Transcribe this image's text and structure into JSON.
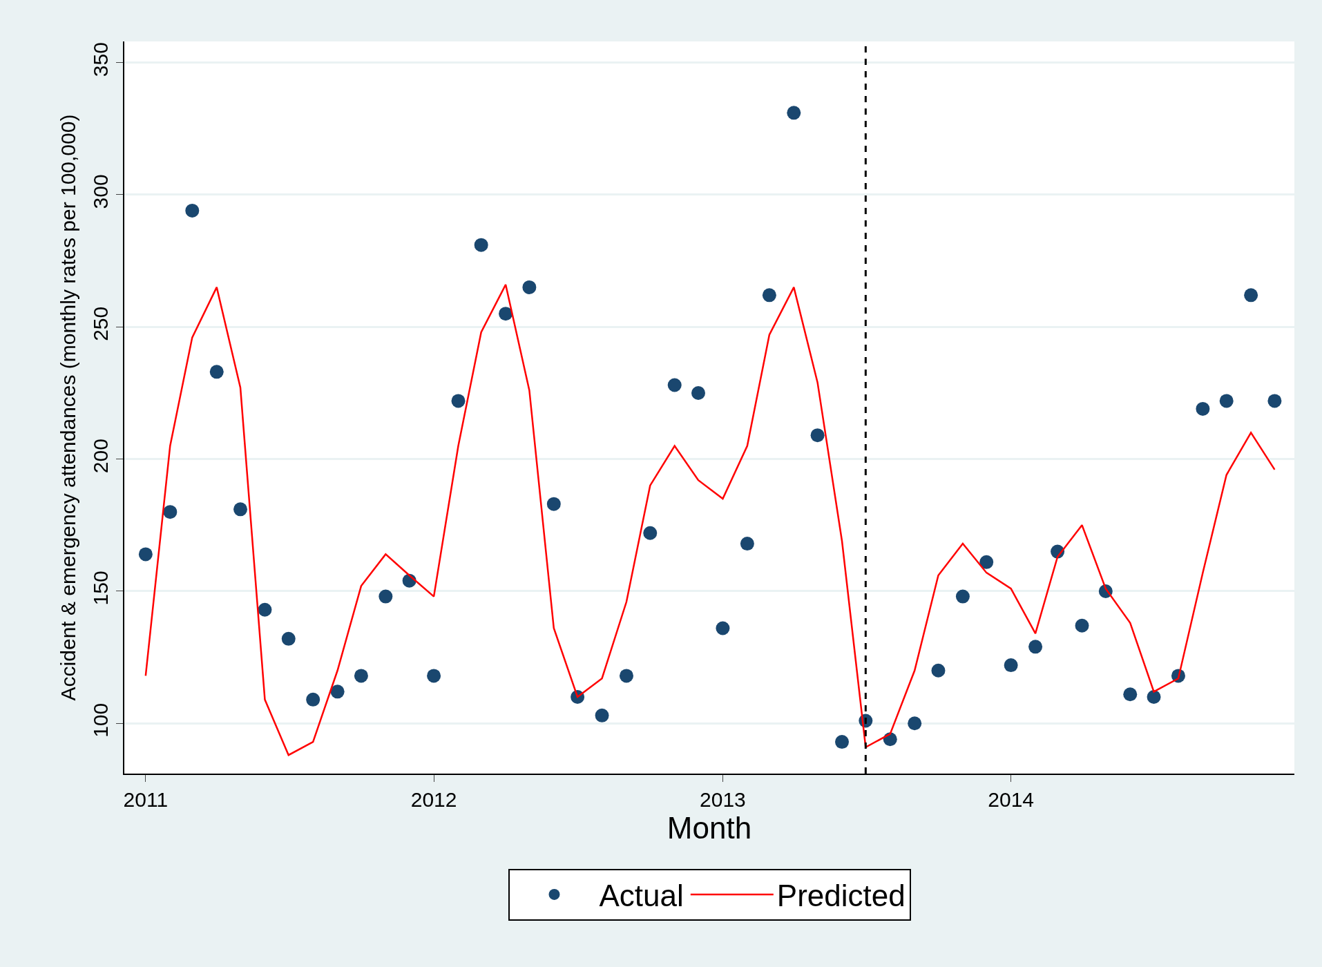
{
  "chart_data": {
    "type": "line",
    "xlabel": "Month",
    "ylabel": "Accident & emergency attendances (monthly rates per 100,000)",
    "x": [
      "2011-01",
      "2011-02",
      "2011-03",
      "2011-04",
      "2011-05",
      "2011-06",
      "2011-07",
      "2011-08",
      "2011-09",
      "2011-10",
      "2011-11",
      "2011-12",
      "2012-01",
      "2012-02",
      "2012-03",
      "2012-04",
      "2012-05",
      "2012-06",
      "2012-07",
      "2012-08",
      "2012-09",
      "2012-10",
      "2012-11",
      "2012-12",
      "2013-01",
      "2013-02",
      "2013-03",
      "2013-04",
      "2013-05",
      "2013-06",
      "2013-07",
      "2013-08",
      "2013-09",
      "2013-10",
      "2013-11",
      "2013-12",
      "2014-01",
      "2014-02",
      "2014-03",
      "2014-04",
      "2014-05",
      "2014-06",
      "2014-07",
      "2014-08",
      "2014-09",
      "2014-10",
      "2014-11",
      "2014-12"
    ],
    "series": [
      {
        "name": "Actual",
        "type": "scatter",
        "marker": "circle",
        "color": "#1a476f",
        "values": [
          164,
          180,
          294,
          233,
          181,
          143,
          132,
          109,
          112,
          118,
          148,
          154,
          118,
          222,
          281,
          255,
          265,
          183,
          110,
          103,
          118,
          172,
          228,
          225,
          136,
          168,
          262,
          331,
          209,
          93,
          101,
          94,
          100,
          120,
          148,
          161,
          122,
          129,
          165,
          137,
          150,
          111,
          110,
          118,
          219,
          222,
          262,
          222
        ]
      },
      {
        "name": "Predicted",
        "line_style": "solid",
        "color": "#ff0000",
        "values": [
          118,
          205,
          246,
          265,
          227,
          109,
          88,
          93,
          120,
          152,
          164,
          156,
          148,
          205,
          248,
          266,
          226,
          136,
          110,
          117,
          146,
          190,
          205,
          192,
          185,
          205,
          247,
          265,
          229,
          169,
          91,
          96,
          120,
          156,
          168,
          157,
          151,
          134,
          163,
          175,
          151,
          138,
          112,
          117,
          157,
          194,
          210,
          196
        ]
      }
    ],
    "xlim": [
      "2010-12-05",
      "2014-12-26"
    ],
    "xticks": [
      {
        "value": "2011-01",
        "label": "2011"
      },
      {
        "value": "2012-01",
        "label": "2012"
      },
      {
        "value": "2013-01",
        "label": "2013"
      },
      {
        "value": "2014-01",
        "label": "2014"
      }
    ],
    "ylim": [
      81,
      358
    ],
    "yticks": [
      100,
      150,
      200,
      250,
      300,
      350
    ],
    "ref_lines": [
      {
        "axis": "x",
        "value": "2013-07",
        "color": "#000000",
        "line_style": "dashed"
      }
    ],
    "grid": "y",
    "legend": "bottom"
  }
}
